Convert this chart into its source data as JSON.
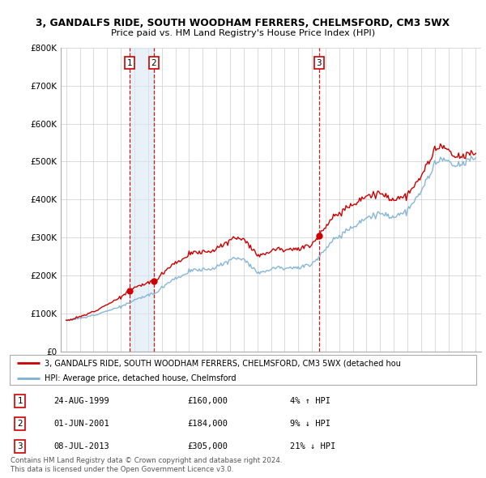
{
  "title1": "3, GANDALFS RIDE, SOUTH WOODHAM FERRERS, CHELMSFORD, CM3 5WX",
  "title2": "Price paid vs. HM Land Registry's House Price Index (HPI)",
  "legend_red": "3, GANDALFS RIDE, SOUTH WOODHAM FERRERS, CHELMSFORD, CM3 5WX (detached hou",
  "legend_blue": "HPI: Average price, detached house, Chelmsford",
  "footer1": "Contains HM Land Registry data © Crown copyright and database right 2024.",
  "footer2": "This data is licensed under the Open Government Licence v3.0.",
  "transactions": [
    {
      "num": 1,
      "date": "24-AUG-1999",
      "price": "£160,000",
      "hpi": "4% ↑ HPI",
      "year": 1999.65
    },
    {
      "num": 2,
      "date": "01-JUN-2001",
      "price": "£184,000",
      "hpi": "9% ↓ HPI",
      "year": 2001.42
    },
    {
      "num": 3,
      "date": "08-JUL-2013",
      "price": "£305,000",
      "hpi": "21% ↓ HPI",
      "year": 2013.52
    }
  ],
  "red_color": "#cc0000",
  "blue_color": "#7ab0d4",
  "shade_color": "#d8e8f3",
  "background_color": "#ffffff",
  "grid_color": "#cccccc",
  "ylim": [
    0,
    800000
  ],
  "xlim_start": 1994.6,
  "xlim_end": 2025.4
}
